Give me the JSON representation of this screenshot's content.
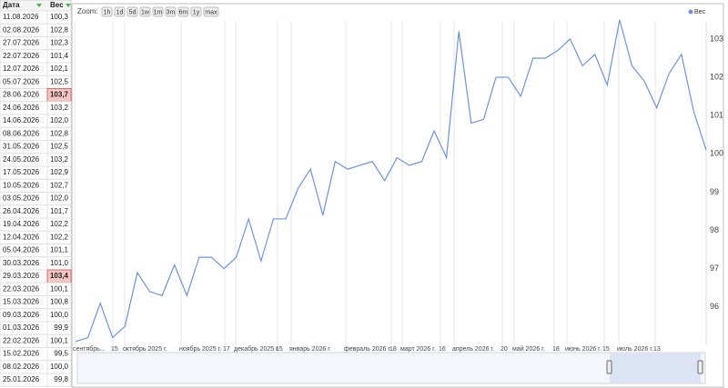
{
  "table": {
    "header": [
      "Дата",
      "Вес"
    ],
    "highlight_rows": [
      6,
      20
    ],
    "rows": [
      [
        "11.08.2026",
        "100,3"
      ],
      [
        "02.08.2026",
        "102,8"
      ],
      [
        "27.07.2026",
        "102,3"
      ],
      [
        "22.07.2026",
        "101,4"
      ],
      [
        "12.07.2026",
        "102,1"
      ],
      [
        "05.07.2026",
        "102,5"
      ],
      [
        "28.06.2026",
        "103,7"
      ],
      [
        "24.06.2026",
        "103,2"
      ],
      [
        "14.06.2026",
        "102,0"
      ],
      [
        "08.06.2026",
        "102,8"
      ],
      [
        "31.05.2026",
        "102,5"
      ],
      [
        "24.05.2026",
        "103,2"
      ],
      [
        "17.05.2026",
        "102,9"
      ],
      [
        "10.05.2026",
        "102,7"
      ],
      [
        "03.05.2026",
        "102,0"
      ],
      [
        "26.04.2026",
        "101,7"
      ],
      [
        "19.04.2026",
        "102,2"
      ],
      [
        "12.04.2026",
        "102,2"
      ],
      [
        "05.04.2026",
        "101,1"
      ],
      [
        "30.03.2026",
        "101,0"
      ],
      [
        "29.03.2026",
        "103,4"
      ],
      [
        "22.03.2026",
        "100,1"
      ],
      [
        "15.03.2026",
        "100,8"
      ],
      [
        "09.03.2026",
        "100,0"
      ],
      [
        "01.03.2026",
        "99,9"
      ],
      [
        "22.02.2026",
        "100,1"
      ],
      [
        "15.02.2026",
        "99,5"
      ],
      [
        "08.02.2026",
        "100,0"
      ],
      [
        "25.01.2026",
        "99,8"
      ]
    ]
  },
  "chart_data": {
    "type": "line",
    "zoom_label": "Zoom:",
    "zoom_buttons": [
      "1h",
      "1d",
      "5d",
      "1w",
      "1m",
      "3m",
      "6m",
      "1y",
      "max"
    ],
    "x_labels": [
      "сентябрь...",
      "15",
      "октябрь 2025 г.",
      "ноябрь 2025 г.",
      "17",
      "декабрь 2025 г.",
      "15",
      "январь 2026 г.",
      "февраль 2026 г.",
      "18",
      "март 2026 г.",
      "16",
      "апрель 2026 г.",
      "20",
      "май 2026 г.",
      "18",
      "июнь 2026 г.",
      "15",
      "июль 2026 г.",
      "13"
    ],
    "series": [
      {
        "name": "Вес",
        "color": "#6f93d9",
        "values": [
          95.1,
          95.2,
          96.1,
          95.2,
          95.5,
          96.9,
          96.4,
          96.3,
          97.1,
          96.3,
          97.3,
          97.3,
          97.0,
          97.3,
          98.3,
          97.2,
          98.3,
          98.3,
          99.1,
          99.6,
          98.4,
          99.8,
          99.6,
          99.7,
          99.8,
          99.3,
          99.9,
          99.7,
          99.8,
          100.6,
          99.9,
          103.2,
          100.8,
          100.9,
          102.0,
          102.0,
          101.5,
          102.5,
          102.5,
          102.7,
          103.0,
          102.3,
          102.6,
          101.8,
          103.5,
          102.3,
          101.9,
          101.2,
          102.1,
          102.6,
          101.1,
          100.1
        ]
      }
    ],
    "ylim": [
      95.0,
      103.9
    ],
    "yticks": [
      96,
      97,
      98,
      99,
      100,
      101,
      102,
      103
    ],
    "grid": true,
    "legend": "top-right"
  }
}
